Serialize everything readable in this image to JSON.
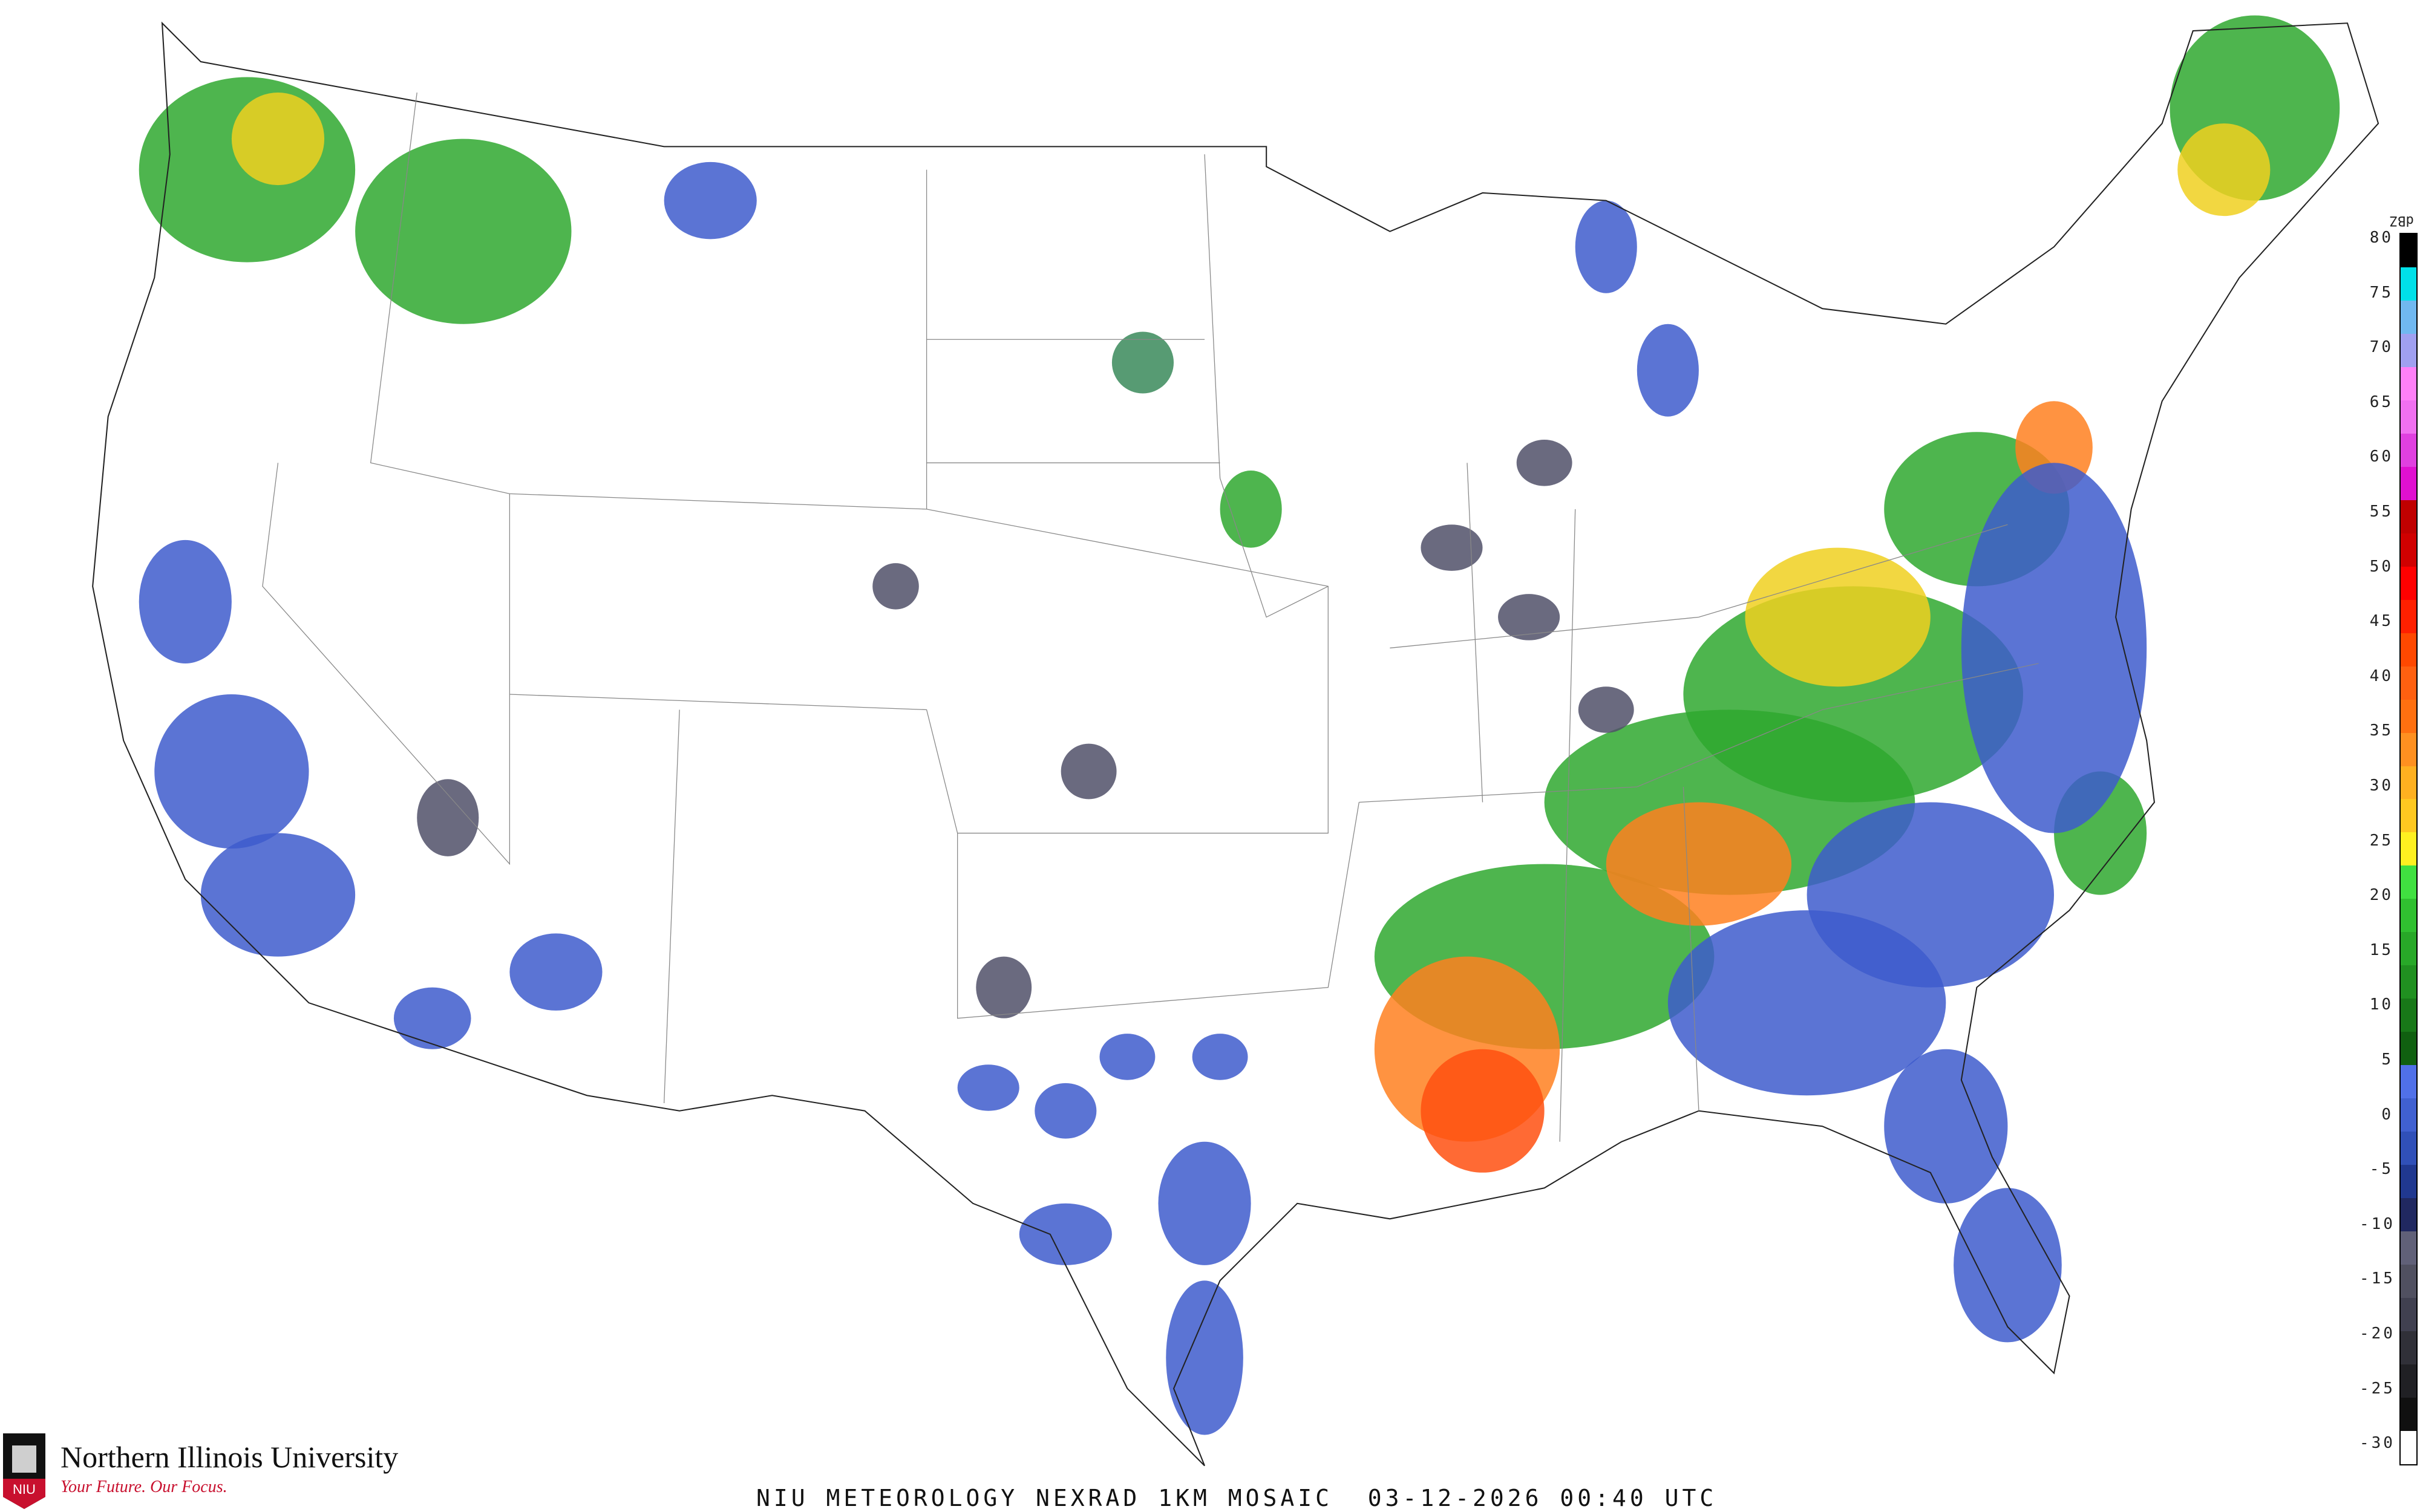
{
  "caption": "NIU METEOROLOGY NEXRAD 1KM MOSAIC  03-12-2026 00:40 UTC",
  "branding": {
    "name": "Northern Illinois University",
    "tagline": "Your Future. Our Focus.",
    "logo_text": "NIU",
    "accent": "#c8102e"
  },
  "legend": {
    "unit": "dBZ",
    "labels": [
      "80",
      "75",
      "70",
      "65",
      "60",
      "55",
      "50",
      "45",
      "40",
      "35",
      "30",
      "25",
      "20",
      "15",
      "10",
      "5",
      "0",
      "-5",
      "-10",
      "-15",
      "-20",
      "-25",
      "-30"
    ],
    "colors": [
      "#000000",
      "#00e0e8",
      "#70b8f0",
      "#a0a0f0",
      "#ff80f8",
      "#f070f0",
      "#e040e0",
      "#e010d0",
      "#c00000",
      "#d00000",
      "#ff0000",
      "#ff2000",
      "#ff4800",
      "#ff6010",
      "#ff7010",
      "#ff9020",
      "#ffb020",
      "#ffc820",
      "#fff020",
      "#40e040",
      "#30c030",
      "#28a828",
      "#209020",
      "#187818",
      "#106010",
      "#5070e8",
      "#4060d0",
      "#3050b8",
      "#203890",
      "#202860",
      "#606078",
      "#505060",
      "#404050",
      "#303038",
      "#202024",
      "#101010",
      "#ffffff"
    ]
  }
}
